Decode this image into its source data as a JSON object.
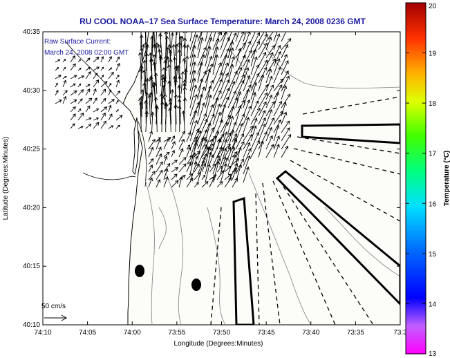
{
  "chart_data": {
    "type": "map",
    "title": "RU COOL  NOAA–17  Sea Surface Temperature:  March 24, 2008 0236 GMT",
    "annotation_lines": [
      "Raw Surface Current:",
      "March 24, 2008 02:00 GMT"
    ],
    "scale_label": "50 cm/s",
    "xlabel": "Longitude (Degrees:Minutes)",
    "ylabel": "Latitude (Degrees:Minutes)",
    "x_ticks": [
      "74:10",
      "74:05",
      "74:00",
      "73:55",
      "73:50",
      "73:45",
      "73:40",
      "73:35",
      "73:3"
    ],
    "y_ticks": [
      "40:35",
      "40:30",
      "40:25",
      "40:20",
      "40:15",
      "40:10"
    ],
    "colorbar": {
      "label": "Temperature (°C)",
      "ticks": [
        "20",
        "19",
        "18",
        "17",
        "16",
        "15",
        "14",
        "13"
      ],
      "range": [
        13,
        20
      ]
    },
    "colors": {
      "title": "#1a1aa0",
      "land": "#ffffff",
      "ocean": "#fcfcf8",
      "arrow": "#000000",
      "contour": "#8a8a8a"
    }
  }
}
